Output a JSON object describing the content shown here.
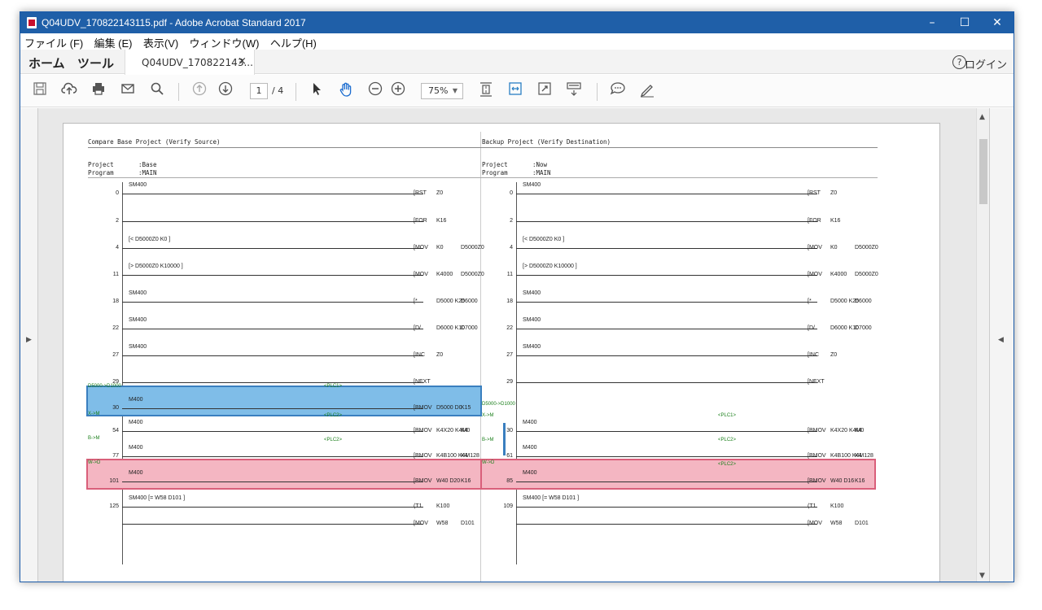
{
  "window": {
    "title": "Q04UDV_170822143115.pdf - Adobe Acrobat Standard 2017",
    "controls": {
      "minimize": "–",
      "maximize": "☐",
      "close": "✕"
    }
  },
  "menu": [
    "ファイル (F)",
    "編集 (E)",
    "表示(V)",
    "ウィンドウ(W)",
    "ヘルプ(H)"
  ],
  "tabs": {
    "home": "ホーム",
    "tools": "ツール",
    "document": "Q04UDV_170822143...",
    "close": "×",
    "help": "?",
    "login": "ログイン"
  },
  "toolbar": {
    "page_current": "1",
    "page_total": "/ 4",
    "zoom": "75%"
  },
  "left": {
    "header": "Compare Base Project (Verify Source)",
    "project_label": "Project",
    "project_value": ":Base",
    "program_label": "Program",
    "program_value": ":MAIN",
    "rungs": [
      {
        "step": "0",
        "contact": "SM400",
        "ins": "[RST",
        "op1": "Z0",
        "op2": ""
      },
      {
        "step": "2",
        "contact": "",
        "ins": "[FOR",
        "op1": "K16",
        "op2": ""
      },
      {
        "step": "4",
        "contact": "[<   D5000Z0   K0   ]",
        "ins": "[MOV",
        "op1": "K0",
        "op2": "D5000Z0"
      },
      {
        "step": "11",
        "contact": "[>   D5000Z0   K10000   ]",
        "ins": "[MOV",
        "op1": "K4000",
        "op2": "D5000Z0"
      },
      {
        "step": "18",
        "contact": "SM400",
        "ins": "[*",
        "op1": "D5000   K25",
        "op2": "D6000"
      },
      {
        "step": "22",
        "contact": "SM400",
        "ins": "[D/",
        "op1": "D6000   K10",
        "op2": "D7000"
      },
      {
        "step": "27",
        "contact": "SM400",
        "ins": "[INC",
        "op1": "Z0",
        "op2": ""
      },
      {
        "step": "29",
        "contact": "",
        "ins": "[NEXT",
        "op1": "",
        "op2": ""
      },
      {
        "step": "30",
        "contact": "M400",
        "ins": "[BMOV",
        "op1": "D5000   D0",
        "op2": "K15"
      },
      {
        "step": "54",
        "contact": "M400",
        "ins": "[BMOV",
        "op1": "K4X20   K4M0",
        "op2": "K4"
      },
      {
        "step": "77",
        "contact": "M400",
        "ins": "[BMOV",
        "op1": "K4B100   K4M128",
        "op2": "K4"
      },
      {
        "step": "101",
        "contact": "M400",
        "ins": "[BMOV",
        "op1": "W40   D20",
        "op2": "K16"
      },
      {
        "step": "125",
        "contact": "SM400   [=   W58   D101   ]",
        "ins": "(T1",
        "op1": "K100",
        "op2": ""
      },
      {
        "step": "",
        "contact": "",
        "ins": "[MOV",
        "op1": "W58",
        "op2": "D101"
      }
    ],
    "comments": [
      "D5000->D1000",
      "X->M",
      "B->M",
      "W->D",
      "<PLC1>",
      "<PLC2>",
      "<PLC2>"
    ]
  },
  "right": {
    "header": "Backup Project (Verify Destination)",
    "project_label": "Project",
    "project_value": ":Now",
    "program_label": "Program",
    "program_value": ":MAIN",
    "rungs": [
      {
        "step": "0",
        "contact": "SM400",
        "ins": "[RST",
        "op1": "Z0",
        "op2": ""
      },
      {
        "step": "2",
        "contact": "",
        "ins": "[FOR",
        "op1": "K16",
        "op2": ""
      },
      {
        "step": "4",
        "contact": "[<   D5000Z0   K0   ]",
        "ins": "[MOV",
        "op1": "K0",
        "op2": "D5000Z0"
      },
      {
        "step": "11",
        "contact": "[>   D5000Z0   K10000   ]",
        "ins": "[MOV",
        "op1": "K4000",
        "op2": "D5000Z0"
      },
      {
        "step": "18",
        "contact": "SM400",
        "ins": "[*",
        "op1": "D5000   K25",
        "op2": "D6000"
      },
      {
        "step": "22",
        "contact": "SM400",
        "ins": "[D/",
        "op1": "D6000   K10",
        "op2": "D7000"
      },
      {
        "step": "27",
        "contact": "SM400",
        "ins": "[INC",
        "op1": "Z0",
        "op2": ""
      },
      {
        "step": "29",
        "contact": "",
        "ins": "[NEXT",
        "op1": "",
        "op2": ""
      },
      {
        "step": "30",
        "contact": "M400",
        "ins": "[BMOV",
        "op1": "K4X20   K4M0",
        "op2": "K4"
      },
      {
        "step": "61",
        "contact": "M400",
        "ins": "[BMOV",
        "op1": "K4B100   K4M128",
        "op2": "K4"
      },
      {
        "step": "85",
        "contact": "M400",
        "ins": "[BMOV",
        "op1": "W40   D16",
        "op2": "K16"
      },
      {
        "step": "109",
        "contact": "SM400   [=   W58   D101   ]",
        "ins": "(T1",
        "op1": "K100",
        "op2": ""
      },
      {
        "step": "",
        "contact": "",
        "ins": "[MOV",
        "op1": "W58",
        "op2": "D101"
      }
    ],
    "comments": [
      "D5000->D1000",
      "X->M",
      "B->M",
      "W->D",
      "<PLC1>",
      "<PLC2>",
      "<PLC2>"
    ]
  }
}
